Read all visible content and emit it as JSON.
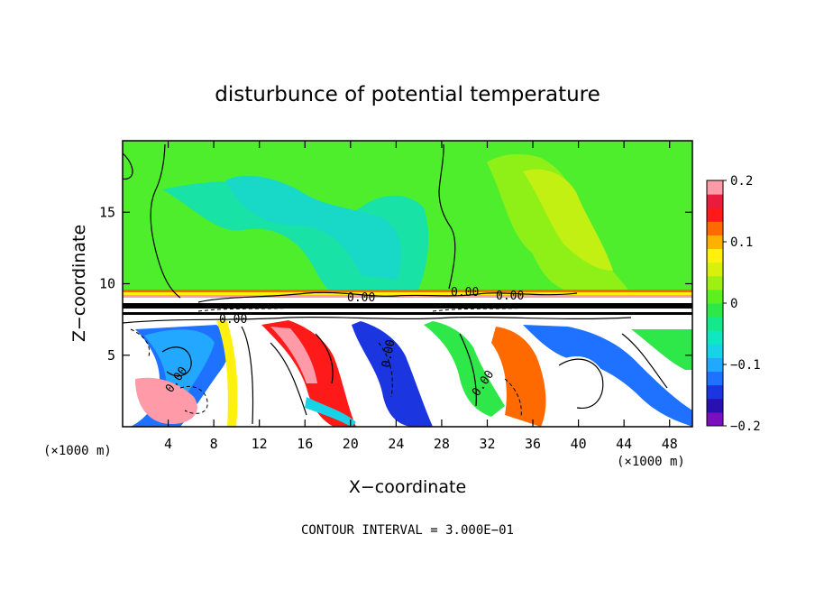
{
  "chart_data": {
    "type": "heatmap",
    "title": "disturbunce of potential temperature",
    "xlabel": "X−coordinate",
    "ylabel": "Z−coordinate",
    "x_unit_left": "(×1000 m)",
    "x_unit_right": "(×1000 m)",
    "xlim": [
      0,
      50
    ],
    "ylim": [
      0,
      20
    ],
    "x_ticks": [
      4,
      8,
      12,
      16,
      20,
      24,
      28,
      32,
      36,
      40,
      44,
      48
    ],
    "y_ticks": [
      5,
      10,
      15
    ],
    "colorbar": {
      "range": [
        -0.2,
        0.2
      ],
      "tick_values": [
        0.2,
        0.1,
        0,
        -0.1,
        -0.2
      ],
      "tick_labels": [
        "0.2",
        "0.1",
        "0",
        "−0.1",
        "−0.2"
      ],
      "colors": [
        "#7b0fbf",
        "#2a10b0",
        "#1b35e0",
        "#1f72ff",
        "#22a8ff",
        "#18d2e8",
        "#10e6c0",
        "#14e88a",
        "#2ee84a",
        "#5cf01e",
        "#9ef014",
        "#d8f010",
        "#fff010",
        "#ffb000",
        "#ff6a00",
        "#ff1a1a",
        "#e81c3c",
        "#ff9aa8"
      ]
    },
    "contour_labels": [
      "0.00",
      "0.00",
      "0.00",
      "0.00",
      "0.00",
      "0.00",
      "0.00"
    ],
    "grid": false
  },
  "footer": {
    "contour_interval": "CONTOUR INTERVAL = 3.000E−01"
  }
}
